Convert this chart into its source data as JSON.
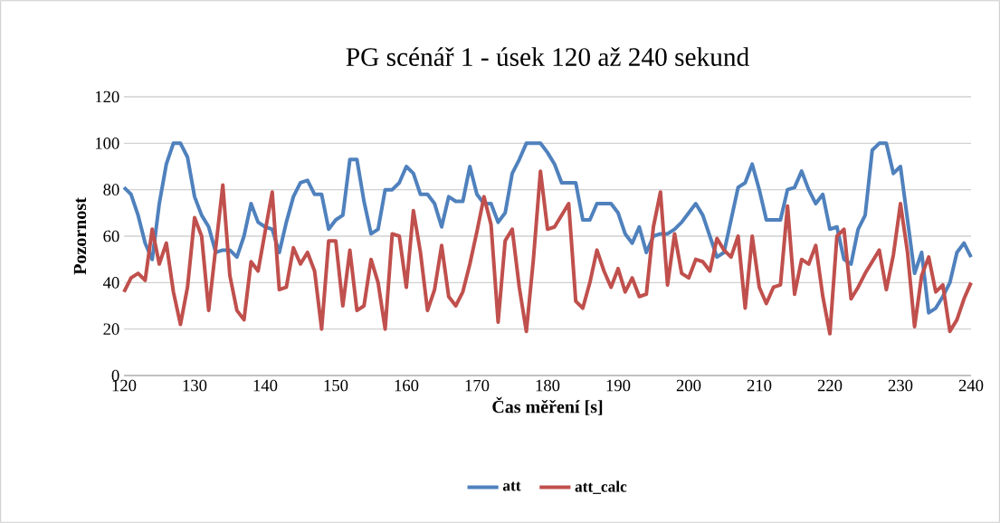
{
  "chart_data": {
    "type": "line",
    "title": "PG scénář 1 - úsek 120 až 240 sekund",
    "xlabel": "Čas měření [s]",
    "ylabel": "Pozornost",
    "x": [
      120,
      121,
      122,
      123,
      124,
      125,
      126,
      127,
      128,
      129,
      130,
      131,
      132,
      133,
      134,
      135,
      136,
      137,
      138,
      139,
      140,
      141,
      142,
      143,
      144,
      145,
      146,
      147,
      148,
      149,
      150,
      151,
      152,
      153,
      154,
      155,
      156,
      157,
      158,
      159,
      160,
      161,
      162,
      163,
      164,
      165,
      166,
      167,
      168,
      169,
      170,
      171,
      172,
      173,
      174,
      175,
      176,
      177,
      178,
      179,
      180,
      181,
      182,
      183,
      184,
      185,
      186,
      187,
      188,
      189,
      190,
      191,
      192,
      193,
      194,
      195,
      196,
      197,
      198,
      199,
      200,
      201,
      202,
      203,
      204,
      205,
      206,
      207,
      208,
      209,
      210,
      211,
      212,
      213,
      214,
      215,
      216,
      217,
      218,
      219,
      220,
      221,
      222,
      223,
      224,
      225,
      226,
      227,
      228,
      229,
      230,
      231,
      232,
      233,
      234,
      235,
      236,
      237,
      238,
      239,
      240
    ],
    "series": [
      {
        "name": "att",
        "color": "#4f81bd",
        "values": [
          81,
          78,
          69,
          57,
          50,
          74,
          91,
          100,
          100,
          94,
          77,
          69,
          64,
          53,
          54,
          54,
          51,
          60,
          74,
          66,
          64,
          63,
          53,
          66,
          77,
          83,
          84,
          78,
          78,
          63,
          67,
          69,
          93,
          93,
          75,
          61,
          63,
          80,
          80,
          83,
          90,
          87,
          78,
          78,
          74,
          64,
          77,
          75,
          75,
          90,
          78,
          74,
          74,
          66,
          70,
          87,
          93,
          100,
          100,
          100,
          96,
          91,
          83,
          83,
          83,
          67,
          67,
          74,
          74,
          74,
          70,
          61,
          57,
          64,
          53,
          60,
          61,
          61,
          63,
          66,
          70,
          74,
          69,
          60,
          51,
          53,
          67,
          81,
          83,
          91,
          80,
          67,
          67,
          67,
          80,
          81,
          88,
          80,
          74,
          78,
          63,
          64,
          50,
          48,
          63,
          69,
          97,
          100,
          100,
          87,
          90,
          67,
          44,
          53,
          27,
          29,
          34,
          40,
          53,
          57,
          51
        ]
      },
      {
        "name": "att_calc",
        "color": "#c0504d",
        "values": [
          36,
          42,
          44,
          41,
          63,
          48,
          57,
          36,
          22,
          38,
          68,
          60,
          28,
          55,
          82,
          43,
          28,
          24,
          49,
          45,
          62,
          79,
          37,
          38,
          55,
          48,
          53,
          45,
          20,
          58,
          58,
          30,
          54,
          28,
          30,
          50,
          40,
          20,
          61,
          60,
          38,
          71,
          53,
          28,
          37,
          56,
          34,
          30,
          36,
          48,
          62,
          77,
          65,
          23,
          58,
          63,
          38,
          19,
          50,
          88,
          63,
          64,
          69,
          74,
          32,
          29,
          40,
          54,
          45,
          38,
          46,
          36,
          42,
          34,
          35,
          64,
          79,
          39,
          61,
          44,
          42,
          50,
          49,
          45,
          59,
          54,
          51,
          60,
          29,
          60,
          38,
          31,
          38,
          39,
          73,
          35,
          50,
          48,
          56,
          34,
          18,
          60,
          63,
          33,
          38,
          44,
          49,
          54,
          37,
          52,
          74,
          53,
          21,
          43,
          51,
          36,
          39,
          19,
          24,
          33,
          40
        ]
      }
    ],
    "xlim": [
      120,
      240
    ],
    "xticks": [
      120,
      130,
      140,
      150,
      160,
      170,
      180,
      190,
      200,
      210,
      220,
      230,
      240
    ],
    "ylim": [
      0,
      120
    ],
    "yticks": [
      0,
      20,
      40,
      60,
      80,
      100,
      120
    ],
    "grid": "y",
    "legend": "bottom"
  }
}
